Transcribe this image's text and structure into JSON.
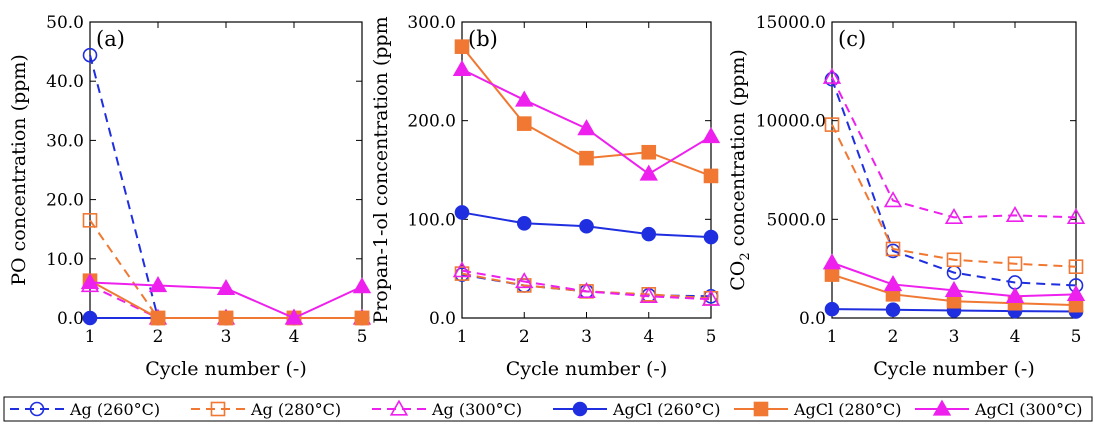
{
  "chart_data": [
    {
      "type": "line",
      "panel_label": "(a)",
      "xlabel": "Cycle number (-)",
      "ylabel": "PO concentration (ppm)",
      "x": [
        1,
        2,
        3,
        4,
        5
      ],
      "xticks": [
        "1",
        "2",
        "3",
        "4",
        "5"
      ],
      "ylim": [
        0,
        50
      ],
      "yticks": [
        "0.0",
        "10.0",
        "20.0",
        "30.0",
        "40.0",
        "50.0"
      ],
      "series": [
        {
          "name": "Ag (260°C)",
          "values": [
            44.4,
            0,
            0,
            0,
            0
          ]
        },
        {
          "name": "Ag (280°C)",
          "values": [
            16.5,
            0,
            0,
            0,
            0
          ]
        },
        {
          "name": "Ag (300°C)",
          "values": [
            5.5,
            0,
            0,
            0,
            0
          ]
        },
        {
          "name": "AgCl (260°C)",
          "values": [
            0,
            0,
            0,
            0,
            0
          ]
        },
        {
          "name": "AgCl (280°C)",
          "values": [
            6.3,
            0,
            0,
            0,
            0
          ]
        },
        {
          "name": "AgCl (300°C)",
          "values": [
            6.0,
            5.5,
            5.0,
            0,
            5.3
          ]
        }
      ]
    },
    {
      "type": "line",
      "panel_label": "(b)",
      "xlabel": "Cycle number (-)",
      "ylabel": "Propan-1-ol concentration (ppm",
      "x": [
        1,
        2,
        3,
        4,
        5
      ],
      "xticks": [
        "1",
        "2",
        "3",
        "4",
        "5"
      ],
      "ylim": [
        0,
        300
      ],
      "yticks": [
        "0.0",
        "100.0",
        "200.0",
        "300.0"
      ],
      "series": [
        {
          "name": "Ag (260°C)",
          "values": [
            44,
            33,
            27,
            23,
            22
          ]
        },
        {
          "name": "Ag (280°C)",
          "values": [
            45,
            33,
            27,
            24,
            20
          ]
        },
        {
          "name": "Ag (300°C)",
          "values": [
            48,
            37,
            27,
            22,
            19
          ]
        },
        {
          "name": "AgCl (260°C)",
          "values": [
            107,
            96,
            93,
            85,
            82
          ]
        },
        {
          "name": "AgCl (280°C)",
          "values": [
            275,
            197,
            162,
            168,
            144
          ]
        },
        {
          "name": "AgCl (300°C)",
          "values": [
            252,
            221,
            192,
            146,
            184
          ]
        }
      ]
    },
    {
      "type": "line",
      "panel_label": "(c)",
      "xlabel": "Cycle number (-)",
      "ylabel_main": "CO",
      "ylabel_sub": "2",
      "ylabel_rest": " concentration (ppm)",
      "x": [
        1,
        2,
        3,
        4,
        5
      ],
      "xticks": [
        "1",
        "2",
        "3",
        "4",
        "5"
      ],
      "ylim": [
        0,
        15000
      ],
      "yticks": [
        "0.0",
        "5000.0",
        "10000.0",
        "15000.0"
      ],
      "series": [
        {
          "name": "Ag (260°C)",
          "values": [
            12100,
            3400,
            2300,
            1800,
            1650
          ]
        },
        {
          "name": "Ag (280°C)",
          "values": [
            9800,
            3500,
            2950,
            2750,
            2600
          ]
        },
        {
          "name": "Ag (300°C)",
          "values": [
            12200,
            5950,
            5100,
            5200,
            5100
          ]
        },
        {
          "name": "AgCl (260°C)",
          "values": [
            450,
            420,
            380,
            350,
            330
          ]
        },
        {
          "name": "AgCl (280°C)",
          "values": [
            2200,
            1200,
            850,
            750,
            650
          ]
        },
        {
          "name": "AgCl (300°C)",
          "values": [
            2800,
            1700,
            1400,
            1100,
            1200
          ]
        }
      ]
    }
  ],
  "legend": [
    {
      "name": "Ag (260°C)",
      "color": "#1f2fe0",
      "dash": true,
      "marker": "circle",
      "filled": false
    },
    {
      "name": "Ag (280°C)",
      "color": "#f07832",
      "dash": true,
      "marker": "square",
      "filled": false
    },
    {
      "name": "Ag (300°C)",
      "color": "#ee20ee",
      "dash": true,
      "marker": "triangle",
      "filled": false
    },
    {
      "name": "AgCl (260°C)",
      "color": "#1f2fe0",
      "dash": false,
      "marker": "circle",
      "filled": true
    },
    {
      "name": "AgCl (280°C)",
      "color": "#f07832",
      "dash": false,
      "marker": "square",
      "filled": true
    },
    {
      "name": "AgCl (300°C)",
      "color": "#ee20ee",
      "dash": false,
      "marker": "triangle",
      "filled": true
    }
  ]
}
